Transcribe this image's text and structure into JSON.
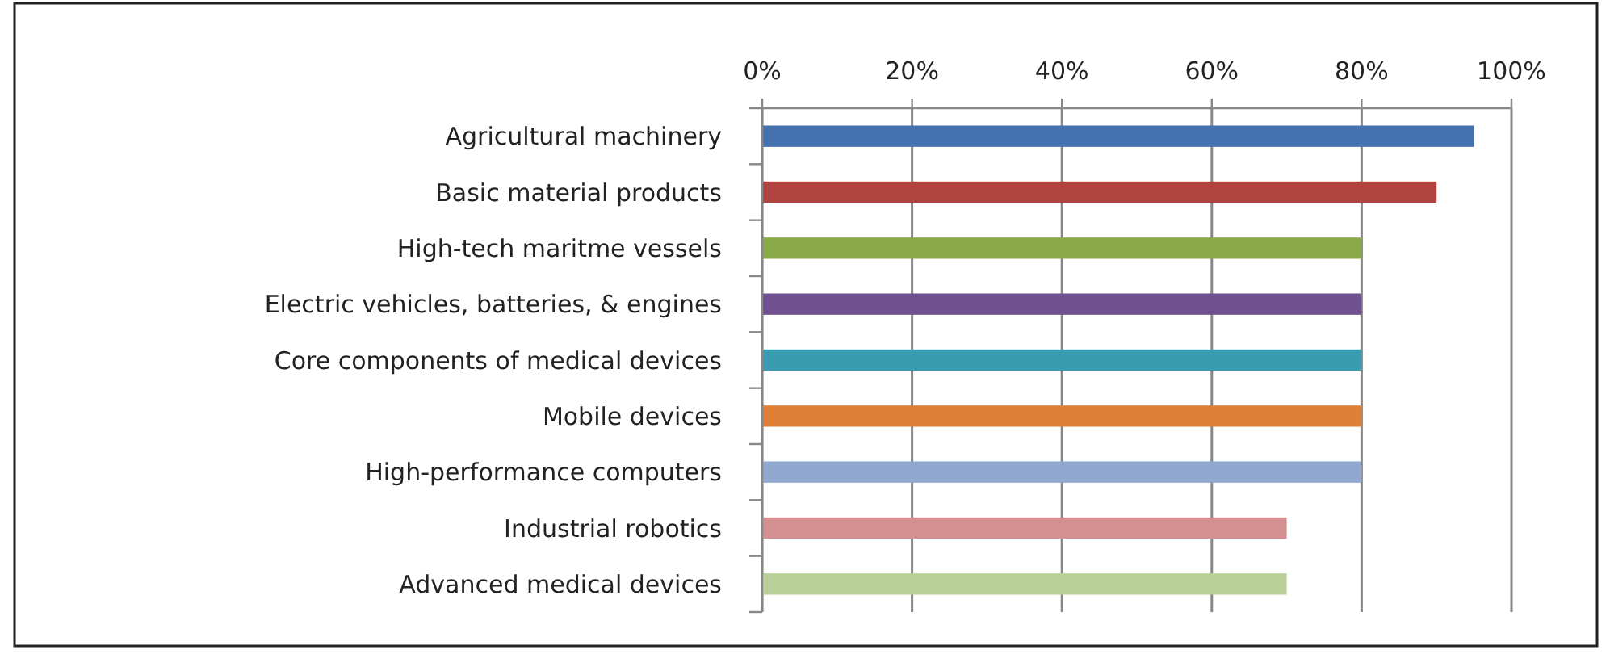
{
  "chart_data": {
    "type": "bar",
    "orientation": "horizontal",
    "categories": [
      "Agricultural machinery",
      "Basic material products",
      "High-tech maritme vessels",
      "Electric vehicles, batteries, & engines",
      "Core components of medical devices",
      "Mobile devices",
      "High-performance computers",
      "Industrial robotics",
      "Advanced medical devices"
    ],
    "values": [
      95,
      90,
      80,
      80,
      80,
      80,
      80,
      70,
      70
    ],
    "colors": [
      "#4472b0",
      "#b04440",
      "#8aaa4a",
      "#705090",
      "#3a9ab0",
      "#de8038",
      "#90a8d0",
      "#d49090",
      "#b8d098"
    ],
    "xlim": [
      0,
      100
    ],
    "xticks": [
      {
        "value": 0,
        "label": "0%"
      },
      {
        "value": 20,
        "label": "20%"
      },
      {
        "value": 40,
        "label": "40%"
      },
      {
        "value": 60,
        "label": "60%"
      },
      {
        "value": 80,
        "label": "80%"
      },
      {
        "value": 100,
        "label": "100%"
      }
    ],
    "grid": "x"
  }
}
